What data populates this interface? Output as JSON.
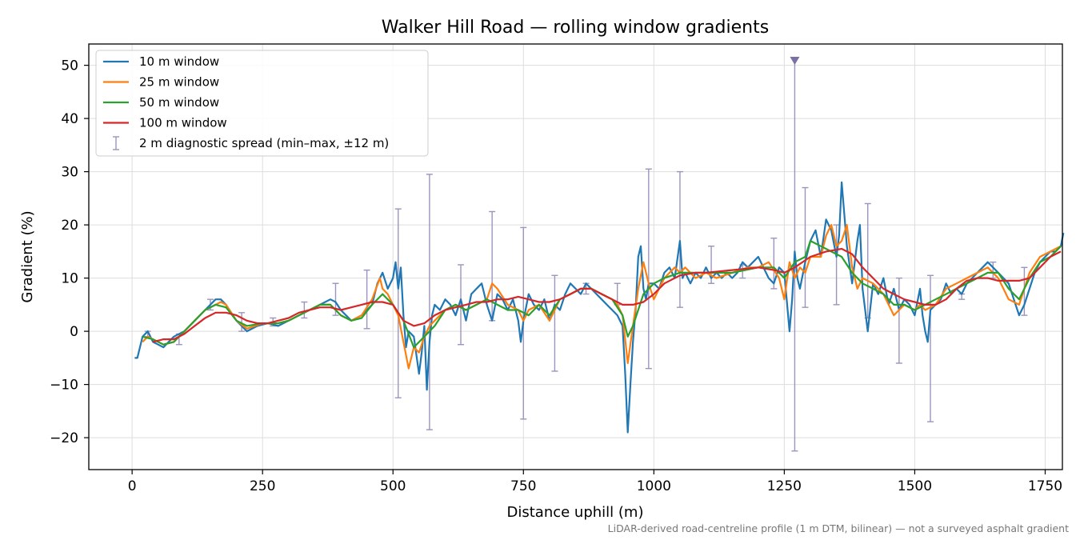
{
  "chart_data": {
    "type": "line",
    "title": "Walker Hill Road — rolling window gradients",
    "xlabel": "Distance uphill (m)",
    "ylabel": "Gradient (%)",
    "footnote": "LiDAR-derived road-centreline profile (1 m DTM, bilinear) — not a surveyed asphalt gradient",
    "xlim": [
      -83,
      1783
    ],
    "ylim": [
      -26,
      54
    ],
    "x_ticks": [
      0,
      250,
      500,
      750,
      1000,
      1250,
      1500,
      1750
    ],
    "y_ticks": [
      -20,
      -10,
      0,
      10,
      20,
      30,
      40,
      50
    ],
    "x_tick_labels": [
      "0",
      "250",
      "500",
      "750",
      "1000",
      "1250",
      "1500",
      "1750"
    ],
    "y_tick_labels": [
      "−20",
      "−10",
      "0",
      "10",
      "20",
      "30",
      "40",
      "50"
    ],
    "grid": true,
    "legend_position": "top-left",
    "series": [
      {
        "name": "10 m window",
        "color": "#1f77b4",
        "x": [
          5,
          10,
          20,
          30,
          40,
          50,
          60,
          70,
          80,
          100,
          120,
          140,
          160,
          170,
          180,
          200,
          220,
          240,
          260,
          280,
          300,
          320,
          340,
          360,
          380,
          390,
          400,
          420,
          440,
          460,
          470,
          480,
          490,
          500,
          505,
          510,
          515,
          520,
          525,
          530,
          540,
          550,
          555,
          560,
          565,
          570,
          575,
          580,
          590,
          600,
          610,
          620,
          630,
          640,
          650,
          660,
          670,
          680,
          690,
          700,
          710,
          720,
          730,
          740,
          745,
          750,
          760,
          770,
          780,
          790,
          800,
          810,
          820,
          830,
          840,
          850,
          860,
          870,
          880,
          890,
          900,
          910,
          920,
          930,
          940,
          945,
          950,
          955,
          960,
          965,
          970,
          975,
          980,
          985,
          990,
          1000,
          1010,
          1020,
          1030,
          1040,
          1050,
          1055,
          1060,
          1070,
          1080,
          1090,
          1100,
          1110,
          1120,
          1130,
          1140,
          1150,
          1160,
          1170,
          1180,
          1190,
          1200,
          1210,
          1220,
          1230,
          1240,
          1250,
          1260,
          1265,
          1270,
          1275,
          1280,
          1290,
          1300,
          1310,
          1320,
          1330,
          1340,
          1350,
          1355,
          1360,
          1365,
          1370,
          1380,
          1390,
          1395,
          1400,
          1410,
          1420,
          1430,
          1440,
          1450,
          1460,
          1470,
          1480,
          1490,
          1500,
          1510,
          1515,
          1520,
          1525,
          1530,
          1540,
          1550,
          1560,
          1570,
          1580,
          1590,
          1600,
          1610,
          1620,
          1630,
          1640,
          1650,
          1660,
          1670,
          1680,
          1690,
          1700,
          1710,
          1720,
          1730,
          1740,
          1750,
          1760,
          1770,
          1780,
          1785
        ],
        "y": [
          -5,
          -5,
          -1,
          0,
          -2,
          -2.5,
          -3,
          -2,
          -1,
          0,
          2,
          4,
          6,
          6,
          5,
          2,
          0,
          1,
          1.5,
          1,
          2,
          3,
          4,
          5,
          6,
          5.5,
          4,
          2,
          3,
          5,
          9,
          11,
          8,
          10,
          13,
          8,
          12,
          3,
          -3,
          0,
          -1,
          -8,
          -4,
          1,
          -11,
          -2,
          3,
          5,
          4,
          6,
          5,
          3,
          6,
          2,
          7,
          8,
          9,
          5,
          2,
          7,
          6,
          4,
          6,
          2,
          -2,
          2,
          7,
          5,
          4,
          6,
          2,
          5,
          4,
          7,
          9,
          8,
          7,
          9,
          8,
          7,
          6,
          5,
          4,
          3,
          1,
          -8,
          -19,
          -10,
          -2,
          4,
          14,
          16,
          8,
          6,
          9,
          9,
          8,
          11,
          12,
          10,
          17,
          10,
          11,
          9,
          11,
          10,
          12,
          10,
          11,
          10,
          11,
          10,
          11,
          13,
          12,
          13,
          14,
          12,
          10,
          9,
          12,
          11,
          0,
          6,
          15,
          10,
          8,
          13,
          17,
          19,
          14,
          21,
          19,
          14,
          18,
          28,
          22,
          16,
          9,
          17,
          20,
          8,
          0,
          9,
          7,
          10,
          5,
          8,
          4,
          6,
          5,
          3,
          8,
          3,
          0,
          -2,
          4,
          5,
          6,
          9,
          7,
          8,
          7,
          9,
          10,
          11,
          12,
          13,
          12,
          11,
          10,
          9,
          6,
          3,
          5,
          8,
          11,
          13,
          14,
          15,
          15,
          16,
          18.5
        ]
      },
      {
        "name": "25 m window",
        "color": "#ff7f0e",
        "x": [
          20,
          30,
          40,
          60,
          80,
          100,
          120,
          140,
          160,
          170,
          180,
          200,
          220,
          250,
          280,
          300,
          320,
          340,
          360,
          380,
          400,
          420,
          440,
          460,
          475,
          480,
          490,
          500,
          510,
          520,
          530,
          540,
          550,
          560,
          570,
          580,
          600,
          620,
          640,
          660,
          680,
          690,
          700,
          720,
          740,
          750,
          760,
          780,
          800,
          820,
          840,
          860,
          880,
          900,
          920,
          930,
          940,
          950,
          960,
          970,
          980,
          990,
          1000,
          1020,
          1040,
          1050,
          1060,
          1080,
          1100,
          1120,
          1150,
          1180,
          1200,
          1220,
          1240,
          1250,
          1260,
          1270,
          1280,
          1290,
          1300,
          1320,
          1330,
          1340,
          1350,
          1360,
          1370,
          1380,
          1390,
          1400,
          1420,
          1440,
          1460,
          1480,
          1500,
          1510,
          1520,
          1540,
          1560,
          1580,
          1600,
          1620,
          1640,
          1660,
          1680,
          1700,
          1720,
          1740,
          1760,
          1780
        ],
        "y": [
          -2,
          -1,
          -1.5,
          -2.5,
          -2,
          0,
          2,
          4,
          5,
          5.5,
          5,
          2,
          0.5,
          1.5,
          1.5,
          2,
          3,
          4,
          5,
          5,
          3,
          2,
          3,
          6,
          10,
          8,
          7,
          5,
          3,
          -2,
          -7,
          -3,
          -4,
          -1,
          1,
          2,
          4,
          5,
          4,
          5,
          6,
          9,
          8,
          5,
          4,
          2,
          4,
          5,
          2,
          6,
          7,
          8,
          8,
          7,
          6,
          5,
          3,
          -6,
          1,
          8,
          13,
          9,
          6,
          10,
          12,
          11,
          12,
          10,
          11,
          10,
          11,
          12,
          12,
          13,
          10,
          6,
          13,
          10,
          12,
          11,
          14,
          14,
          18,
          20,
          16,
          17,
          20,
          12,
          8,
          10,
          9,
          7,
          3,
          5,
          4,
          5,
          4,
          5,
          8,
          9,
          10,
          11,
          12,
          10,
          6,
          5,
          11,
          14,
          15,
          16
        ]
      },
      {
        "name": "50 m window",
        "color": "#2ca02c",
        "x": [
          20,
          40,
          60,
          80,
          100,
          120,
          140,
          160,
          180,
          200,
          220,
          250,
          280,
          300,
          320,
          340,
          360,
          380,
          400,
          420,
          440,
          460,
          480,
          500,
          520,
          540,
          560,
          580,
          600,
          620,
          640,
          660,
          680,
          700,
          720,
          740,
          760,
          780,
          800,
          820,
          840,
          860,
          880,
          900,
          920,
          940,
          950,
          960,
          980,
          1000,
          1020,
          1050,
          1080,
          1100,
          1150,
          1200,
          1230,
          1250,
          1270,
          1290,
          1300,
          1320,
          1340,
          1360,
          1380,
          1400,
          1420,
          1440,
          1460,
          1480,
          1500,
          1520,
          1540,
          1560,
          1580,
          1600,
          1620,
          1640,
          1660,
          1680,
          1700,
          1720,
          1740,
          1760,
          1780
        ],
        "y": [
          -1,
          -1.5,
          -2.5,
          -2,
          0,
          2,
          4,
          5,
          4.5,
          2,
          1,
          1.5,
          1.5,
          2,
          3,
          4,
          5,
          5,
          3,
          2,
          2.5,
          5,
          7,
          5,
          2,
          -3,
          -1,
          1,
          4,
          5,
          4,
          5,
          6,
          5,
          4,
          4,
          3,
          5,
          3,
          6,
          7,
          8,
          8,
          7,
          6,
          3,
          -1,
          1,
          7,
          9,
          10,
          11,
          11,
          11,
          11,
          12,
          12,
          10,
          13,
          14,
          17,
          16,
          15,
          14,
          11,
          9,
          8,
          7,
          5,
          5,
          4,
          5,
          6,
          7,
          8,
          9,
          10,
          11,
          11,
          8,
          6,
          10,
          13,
          14,
          16
        ]
      },
      {
        "name": "100 m window",
        "color": "#d62728",
        "x": [
          40,
          60,
          80,
          100,
          120,
          140,
          160,
          180,
          200,
          220,
          240,
          260,
          280,
          300,
          320,
          340,
          360,
          380,
          400,
          420,
          440,
          460,
          480,
          500,
          520,
          540,
          560,
          580,
          600,
          620,
          640,
          660,
          680,
          700,
          720,
          740,
          760,
          780,
          800,
          820,
          840,
          860,
          880,
          900,
          920,
          940,
          960,
          980,
          1000,
          1020,
          1050,
          1080,
          1100,
          1150,
          1200,
          1230,
          1250,
          1270,
          1300,
          1330,
          1360,
          1380,
          1400,
          1420,
          1440,
          1460,
          1480,
          1500,
          1520,
          1540,
          1560,
          1580,
          1600,
          1620,
          1640,
          1660,
          1680,
          1700,
          1720,
          1740,
          1760,
          1780
        ],
        "y": [
          -2,
          -1.5,
          -1.5,
          -0.5,
          1,
          2.5,
          3.5,
          3.5,
          3,
          2,
          1.5,
          1.5,
          2,
          2.5,
          3.5,
          4,
          4.5,
          4.5,
          4,
          4.5,
          5,
          5.5,
          5.5,
          5,
          2,
          1,
          1.5,
          3,
          4,
          4.5,
          5,
          5.5,
          5.5,
          6,
          6,
          6.5,
          6,
          5.5,
          5.5,
          6,
          7,
          8,
          8,
          7,
          6,
          5,
          5,
          5.5,
          7,
          9,
          10.5,
          11,
          11,
          11.5,
          12,
          11.5,
          11,
          12,
          14,
          15,
          15.5,
          14.5,
          12,
          10,
          8,
          7,
          6,
          5.5,
          5,
          5,
          6,
          8,
          9.5,
          10,
          10,
          9.5,
          9.5,
          9.5,
          10,
          12,
          14,
          15
        ]
      }
    ],
    "errorbars": {
      "name": "2 m diagnostic spread (min–max, ±12 m)",
      "color": "#9b95bd",
      "points": [
        {
          "x": 30,
          "lo": -1,
          "hi": 0
        },
        {
          "x": 90,
          "lo": -2.5,
          "hi": -0.5
        },
        {
          "x": 150,
          "lo": 4,
          "hi": 6
        },
        {
          "x": 210,
          "lo": 0,
          "hi": 3.5
        },
        {
          "x": 270,
          "lo": 1,
          "hi": 2.5
        },
        {
          "x": 330,
          "lo": 2.5,
          "hi": 5.5
        },
        {
          "x": 390,
          "lo": 3,
          "hi": 9
        },
        {
          "x": 450,
          "lo": 0.5,
          "hi": 11.5
        },
        {
          "x": 510,
          "lo": -12.5,
          "hi": 23
        },
        {
          "x": 570,
          "lo": -18.5,
          "hi": 29.5
        },
        {
          "x": 630,
          "lo": -2.5,
          "hi": 12.5
        },
        {
          "x": 690,
          "lo": 2,
          "hi": 22.5
        },
        {
          "x": 750,
          "lo": -16.5,
          "hi": 19.5
        },
        {
          "x": 810,
          "lo": -7.5,
          "hi": 10.5
        },
        {
          "x": 870,
          "lo": 7,
          "hi": 9
        },
        {
          "x": 930,
          "lo": 5,
          "hi": 9
        },
        {
          "x": 990,
          "lo": -7,
          "hi": 30.5
        },
        {
          "x": 1050,
          "lo": 4.5,
          "hi": 30
        },
        {
          "x": 1110,
          "lo": 9,
          "hi": 16
        },
        {
          "x": 1170,
          "lo": 10,
          "hi": 12.5
        },
        {
          "x": 1230,
          "lo": 8,
          "hi": 17.5
        },
        {
          "x": 1270,
          "lo": -22.5,
          "hi": 51,
          "clipped": true
        },
        {
          "x": 1290,
          "lo": 4.5,
          "hi": 27
        },
        {
          "x": 1350,
          "lo": 5,
          "hi": 20
        },
        {
          "x": 1410,
          "lo": 2.5,
          "hi": 24
        },
        {
          "x": 1470,
          "lo": -6,
          "hi": 10
        },
        {
          "x": 1530,
          "lo": -17,
          "hi": 10.5
        },
        {
          "x": 1590,
          "lo": 6,
          "hi": 7
        },
        {
          "x": 1650,
          "lo": 10,
          "hi": 13
        },
        {
          "x": 1710,
          "lo": 3,
          "hi": 12
        }
      ]
    }
  }
}
